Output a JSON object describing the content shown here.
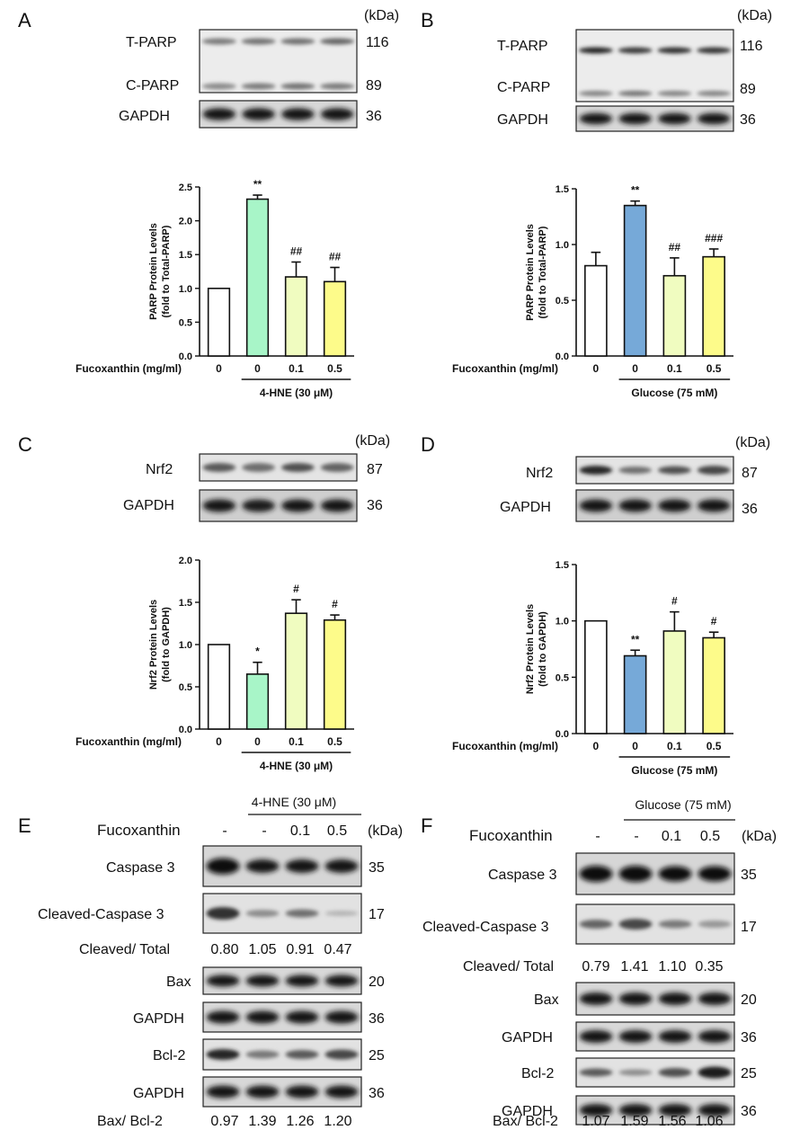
{
  "panels": {
    "A": {
      "letter": "A",
      "unit": "(kDa)",
      "blots": [
        {
          "label": "T-PARP",
          "kda": "116"
        },
        {
          "label": "C-PARP",
          "kda": "89"
        },
        {
          "label": "GAPDH",
          "kda": "36"
        }
      ]
    },
    "B": {
      "letter": "B",
      "unit": "(kDa)",
      "blots": [
        {
          "label": "T-PARP",
          "kda": "116"
        },
        {
          "label": "C-PARP",
          "kda": "89"
        },
        {
          "label": "GAPDH",
          "kda": "36"
        }
      ]
    },
    "C": {
      "letter": "C",
      "unit": "(kDa)",
      "blots": [
        {
          "label": "Nrf2",
          "kda": "87"
        },
        {
          "label": "GAPDH",
          "kda": "36"
        }
      ]
    },
    "D": {
      "letter": "D",
      "unit": "(kDa)",
      "blots": [
        {
          "label": "Nrf2",
          "kda": "87"
        },
        {
          "label": "GAPDH",
          "kda": "36"
        }
      ]
    },
    "E": {
      "letter": "E",
      "unit": "(kDa)",
      "treatment": "4-HNE (30 μM)",
      "fuco_label": "Fucoxanthin",
      "doses": [
        "-",
        "-",
        "0.1",
        "0.5"
      ],
      "blots": [
        {
          "label": "Caspase 3",
          "kda": "35"
        },
        {
          "label": "Cleaved-Caspase 3",
          "kda": "17"
        },
        {
          "label": "Bax",
          "kda": "20"
        },
        {
          "label": "GAPDH",
          "kda": "36"
        },
        {
          "label": "Bcl-2",
          "kda": "25"
        },
        {
          "label": "GAPDH",
          "kda": "36"
        }
      ],
      "ratio1": {
        "label": "Cleaved/ Total",
        "values": [
          "0.80",
          "1.05",
          "0.91",
          "0.47"
        ]
      },
      "ratio2": {
        "label": "Bax/ Bcl-2",
        "values": [
          "0.97",
          "1.39",
          "1.26",
          "1.20"
        ]
      }
    },
    "F": {
      "letter": "F",
      "unit": "(kDa)",
      "treatment": "Glucose (75 mM)",
      "fuco_label": "Fucoxanthin",
      "doses": [
        "-",
        "-",
        "0.1",
        "0.5"
      ],
      "blots": [
        {
          "label": "Caspase 3",
          "kda": "35"
        },
        {
          "label": "Cleaved-Caspase 3",
          "kda": "17"
        },
        {
          "label": "Bax",
          "kda": "20"
        },
        {
          "label": "GAPDH",
          "kda": "36"
        },
        {
          "label": "Bcl-2",
          "kda": "25"
        },
        {
          "label": "GAPDH",
          "kda": "36"
        }
      ],
      "ratio1": {
        "label": "Cleaved/ Total",
        "values": [
          "0.79",
          "1.41",
          "1.10",
          "0.35"
        ]
      },
      "ratio2": {
        "label": "Bax/ Bcl-2",
        "values": [
          "1.07",
          "1.59",
          "1.56",
          "1.06"
        ]
      }
    }
  },
  "colors": {
    "control": "#ffffff",
    "hne": "#a8f5c8",
    "glucose": "#76a9d8",
    "dose_low": "#f0fcc0",
    "dose_high": "#fdfb8a"
  },
  "chart_data": [
    {
      "id": "A",
      "type": "bar",
      "ylabel": "PARP Protein Levels\n(fold to Total-PARP)",
      "ylim": [
        0,
        2.5
      ],
      "yticks": [
        "0.0",
        "0.5",
        "1.0",
        "1.5",
        "2.0",
        "2.5"
      ],
      "xlabel": "Fucoxanthin (mg/ml)",
      "categories": [
        "0",
        "0",
        "0.1",
        "0.5"
      ],
      "values": [
        1.0,
        2.32,
        1.17,
        1.1
      ],
      "errors": [
        0,
        0.06,
        0.22,
        0.21
      ],
      "annotations": [
        "",
        "**",
        "##",
        "##"
      ],
      "group_label": "4-HNE (30 μM)",
      "colors": [
        "#ffffff",
        "#a8f5c8",
        "#f0fcc0",
        "#fdfb8a"
      ]
    },
    {
      "id": "B",
      "type": "bar",
      "ylabel": "PARP Protein Levels\n(fold to Total-PARP)",
      "ylim": [
        0,
        1.5
      ],
      "yticks": [
        "0.0",
        "0.5",
        "1.0",
        "1.5"
      ],
      "xlabel": "Fucoxanthin (mg/ml)",
      "categories": [
        "0",
        "0",
        "0.1",
        "0.5"
      ],
      "values": [
        0.81,
        1.35,
        0.72,
        0.89
      ],
      "errors": [
        0.12,
        0.04,
        0.16,
        0.07
      ],
      "annotations": [
        "",
        "**",
        "##",
        "###"
      ],
      "group_label": "Glucose (75 mM)",
      "colors": [
        "#ffffff",
        "#76a9d8",
        "#f0fcc0",
        "#fdfb8a"
      ]
    },
    {
      "id": "C",
      "type": "bar",
      "ylabel": "Nrf2 Protein Levels\n(fold to GAPDH)",
      "ylim": [
        0,
        2.0
      ],
      "yticks": [
        "0.0",
        "0.5",
        "1.0",
        "1.5",
        "2.0"
      ],
      "xlabel": "Fucoxanthin (mg/ml)",
      "categories": [
        "0",
        "0",
        "0.1",
        "0.5"
      ],
      "values": [
        1.0,
        0.65,
        1.37,
        1.29
      ],
      "errors": [
        0,
        0.14,
        0.16,
        0.06
      ],
      "annotations": [
        "",
        "*",
        "#",
        "#"
      ],
      "group_label": "4-HNE (30 μM)",
      "colors": [
        "#ffffff",
        "#a8f5c8",
        "#f0fcc0",
        "#fdfb8a"
      ]
    },
    {
      "id": "D",
      "type": "bar",
      "ylabel": "Nrf2 Protein Levels\n(fold to GAPDH)",
      "ylim": [
        0,
        1.5
      ],
      "yticks": [
        "0.0",
        "0.5",
        "1.0",
        "1.5"
      ],
      "xlabel": "Fucoxanthin (mg/ml)",
      "categories": [
        "0",
        "0",
        "0.1",
        "0.5"
      ],
      "values": [
        1.0,
        0.69,
        0.91,
        0.85
      ],
      "errors": [
        0,
        0.05,
        0.17,
        0.05
      ],
      "annotations": [
        "",
        "**",
        "#",
        "#"
      ],
      "group_label": "Glucose (75 mM)",
      "colors": [
        "#ffffff",
        "#76a9d8",
        "#f0fcc0",
        "#fdfb8a"
      ]
    }
  ]
}
